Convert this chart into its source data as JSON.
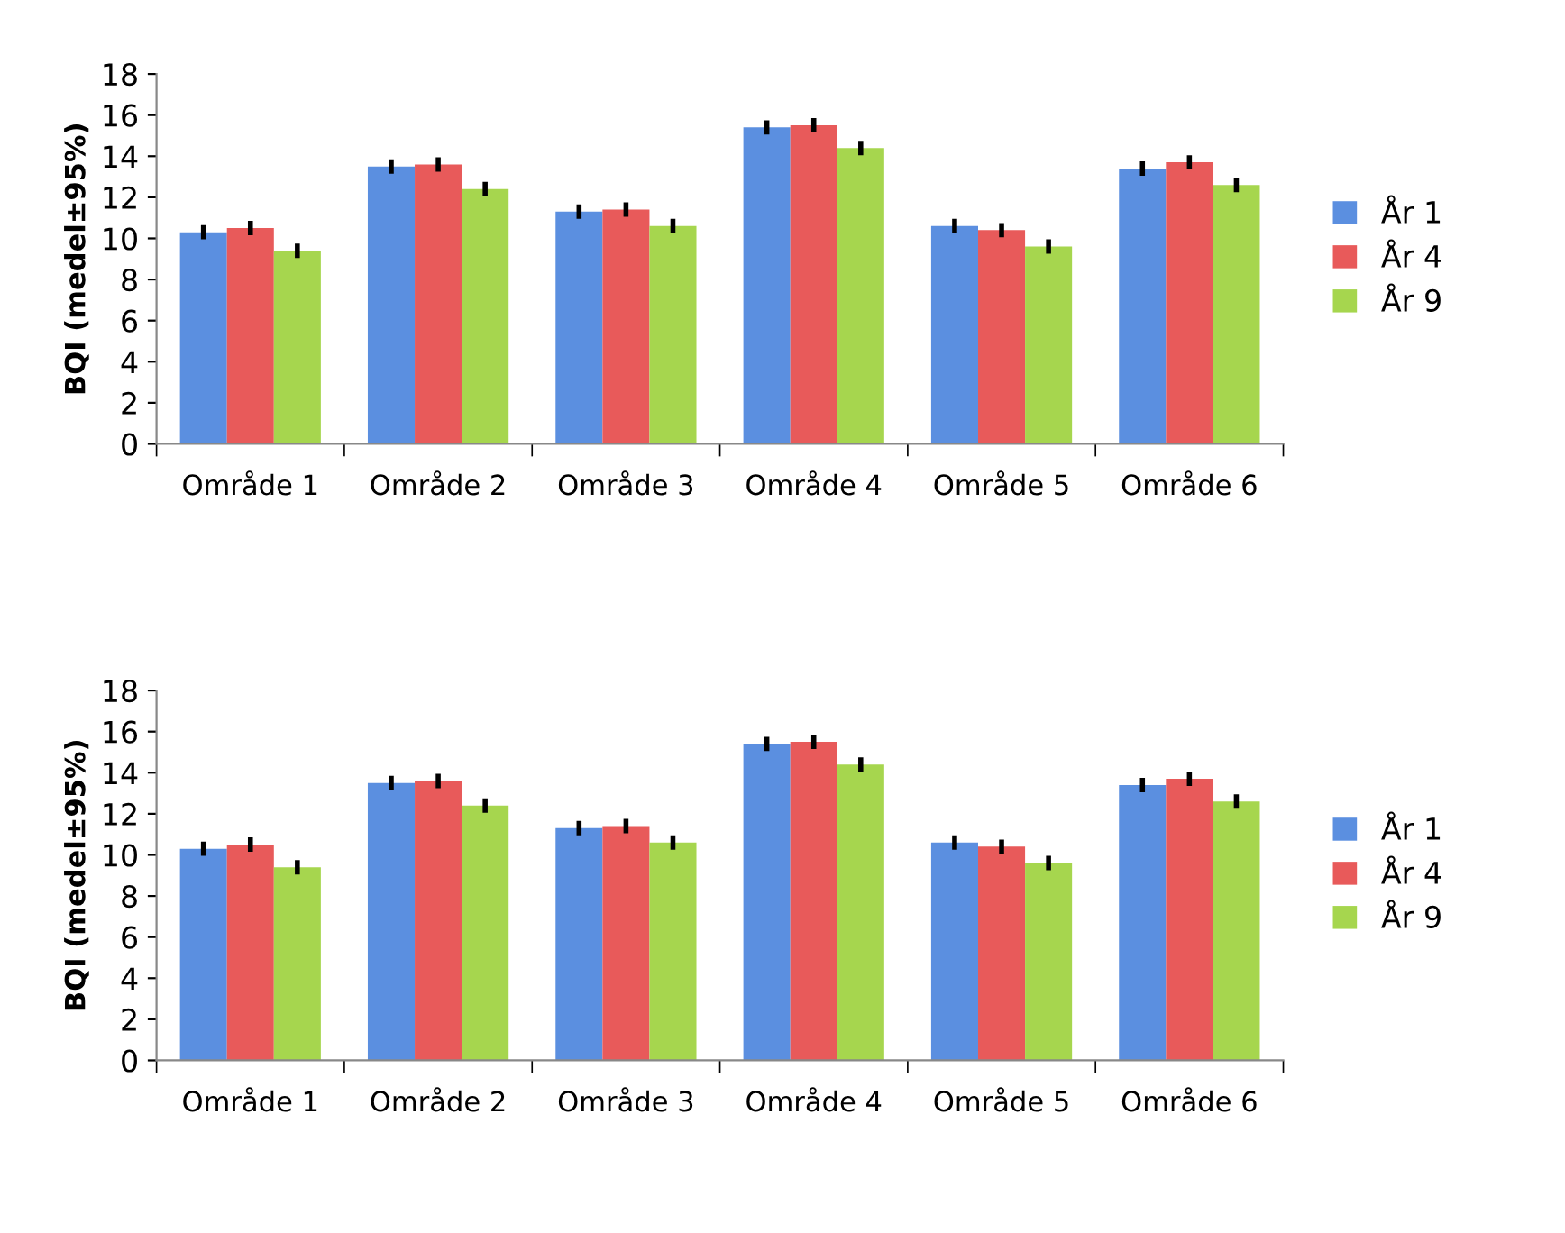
{
  "chart_data": [
    {
      "type": "bar",
      "ylabel": "BQI (medel±95%)",
      "categories": [
        "Område 1",
        "Område 2",
        "Område 3",
        "Område 4",
        "Område 5",
        "Område 6"
      ],
      "ylim": [
        0,
        18
      ],
      "yticks": [
        0,
        2,
        4,
        6,
        8,
        10,
        12,
        14,
        16,
        18
      ],
      "grid": false,
      "legend": "right",
      "series": [
        {
          "name": "År 1",
          "color": "#5b8fe0",
          "values": [
            10.3,
            13.5,
            11.3,
            15.4,
            10.6,
            13.4
          ],
          "errors": [
            0.35,
            0.35,
            0.35,
            0.35,
            0.35,
            0.35
          ]
        },
        {
          "name": "År 4",
          "color": "#e85a5a",
          "values": [
            10.5,
            13.6,
            11.4,
            15.5,
            10.4,
            13.7
          ],
          "errors": [
            0.35,
            0.35,
            0.35,
            0.35,
            0.35,
            0.35
          ]
        },
        {
          "name": "År 9",
          "color": "#a6d64e",
          "values": [
            9.4,
            12.4,
            10.6,
            14.4,
            9.6,
            12.6
          ],
          "errors": [
            0.35,
            0.35,
            0.35,
            0.35,
            0.35,
            0.35
          ]
        }
      ]
    },
    {
      "type": "bar",
      "ylabel": "BQI (medel±95%)",
      "categories": [
        "Område 1",
        "Område 2",
        "Område 3",
        "Område 4",
        "Område 5",
        "Område 6"
      ],
      "ylim": [
        0,
        18
      ],
      "yticks": [
        0,
        2,
        4,
        6,
        8,
        10,
        12,
        14,
        16,
        18
      ],
      "grid": false,
      "legend": "right",
      "series": [
        {
          "name": "År 1",
          "color": "#5b8fe0",
          "values": [
            10.3,
            13.5,
            11.3,
            15.4,
            10.6,
            13.4
          ],
          "errors": [
            0.35,
            0.35,
            0.35,
            0.35,
            0.35,
            0.35
          ]
        },
        {
          "name": "År 4",
          "color": "#e85a5a",
          "values": [
            10.5,
            13.6,
            11.4,
            15.5,
            10.4,
            13.7
          ],
          "errors": [
            0.35,
            0.35,
            0.35,
            0.35,
            0.35,
            0.35
          ]
        },
        {
          "name": "År 9",
          "color": "#a6d64e",
          "values": [
            9.4,
            12.4,
            10.6,
            14.4,
            9.6,
            12.6
          ],
          "errors": [
            0.35,
            0.35,
            0.35,
            0.35,
            0.35,
            0.35
          ]
        }
      ]
    }
  ]
}
